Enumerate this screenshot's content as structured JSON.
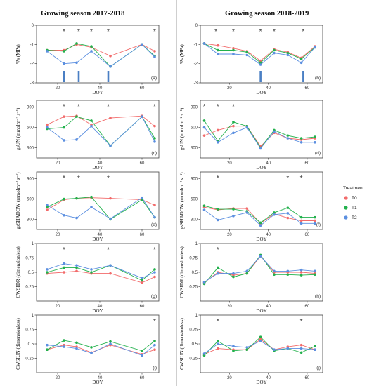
{
  "titles": {
    "left": "Growing season 2017-2018",
    "right": "Growing season 2018-2019"
  },
  "legend": {
    "title": "Treatment",
    "entries": [
      {
        "name": "T0",
        "color": "#f26b6b"
      },
      {
        "name": "T1",
        "color": "#22b14c"
      },
      {
        "name": "T2",
        "color": "#5b8fe0"
      }
    ]
  },
  "chart_data": [
    {
      "id": "a",
      "type": "line",
      "panel_label": "(a)",
      "ylabel": "Ψs (MPa)",
      "xlabel": "DOY",
      "xlim": [
        10,
        68
      ],
      "ylim": [
        -3,
        0
      ],
      "xticks": [
        20,
        40,
        60
      ],
      "yticks": [
        -3,
        -2,
        -1,
        0
      ],
      "x": [
        15,
        23,
        29,
        36,
        45,
        60,
        66
      ],
      "series": [
        {
          "name": "T0",
          "values": [
            -1.3,
            -1.3,
            -1.0,
            -1.15,
            -1.6,
            -1.0,
            -1.35
          ]
        },
        {
          "name": "T1",
          "values": [
            -1.3,
            -1.35,
            -0.95,
            -1.1,
            -2.15,
            -1.0,
            -1.6
          ]
        },
        {
          "name": "T2",
          "values": [
            -1.35,
            -2.0,
            -1.95,
            -1.35,
            -2.15,
            -1.0,
            -1.65
          ]
        }
      ],
      "stars": [
        23,
        30,
        36,
        44,
        66
      ],
      "arrows": [
        23,
        30,
        44
      ]
    },
    {
      "id": "b",
      "type": "line",
      "panel_label": "(b)",
      "ylabel": "Ψs (MPa)",
      "xlabel": "DOY",
      "xlim": [
        5,
        68
      ],
      "ylim": [
        -3,
        0
      ],
      "xticks": [
        20,
        40,
        60
      ],
      "yticks": [
        -3,
        -2,
        -1,
        0
      ],
      "x": [
        7,
        14,
        22,
        29,
        36,
        43,
        50,
        57,
        64
      ],
      "series": [
        {
          "name": "T0",
          "values": [
            -0.95,
            -1.05,
            -1.2,
            -1.35,
            -1.85,
            -1.25,
            -1.4,
            -1.7,
            -1.1
          ]
        },
        {
          "name": "T1",
          "values": [
            -0.95,
            -1.3,
            -1.3,
            -1.4,
            -1.95,
            -1.3,
            -1.45,
            -1.75,
            -1.15
          ]
        },
        {
          "name": "T2",
          "values": [
            -0.95,
            -1.5,
            -1.5,
            -1.55,
            -2.05,
            -1.45,
            -1.55,
            -1.95,
            -1.15
          ]
        }
      ],
      "stars": [
        13,
        22,
        36,
        43,
        58
      ],
      "arrows": [
        36,
        58
      ]
    },
    {
      "id": "c",
      "type": "line",
      "panel_label": "(c)",
      "ylabel": "gsUN (mmolm⁻² s⁻¹)",
      "xlabel": "DOY",
      "xlim": [
        10,
        68
      ],
      "ylim": [
        150,
        1000
      ],
      "xticks": [
        20,
        40,
        60
      ],
      "yticks": [
        300,
        600,
        900
      ],
      "x": [
        15,
        23,
        29,
        36,
        45,
        60,
        66
      ],
      "series": [
        {
          "name": "T0",
          "values": [
            640,
            760,
            770,
            640,
            740,
            770,
            620
          ]
        },
        {
          "name": "T1",
          "values": [
            580,
            600,
            760,
            700,
            330,
            760,
            440
          ]
        },
        {
          "name": "T2",
          "values": [
            600,
            410,
            420,
            620,
            330,
            760,
            390
          ]
        }
      ],
      "stars": [
        23,
        30,
        44,
        66
      ]
    },
    {
      "id": "d",
      "type": "line",
      "panel_label": "(d)",
      "ylabel": "gsUN (mmolm⁻² s⁻¹)",
      "xlabel": "DOY",
      "xlim": [
        5,
        68
      ],
      "ylim": [
        150,
        1000
      ],
      "xticks": [
        20,
        40,
        60
      ],
      "yticks": [
        300,
        600,
        900
      ],
      "x": [
        7,
        14,
        22,
        29,
        36,
        43,
        50,
        57,
        64
      ],
      "series": [
        {
          "name": "T0",
          "values": [
            480,
            560,
            620,
            620,
            320,
            520,
            440,
            420,
            440
          ]
        },
        {
          "name": "T1",
          "values": [
            700,
            400,
            680,
            620,
            300,
            560,
            480,
            440,
            460
          ]
        },
        {
          "name": "T2",
          "values": [
            600,
            380,
            520,
            600,
            290,
            540,
            440,
            380,
            380
          ]
        }
      ],
      "stars": [
        7,
        14,
        22
      ]
    },
    {
      "id": "e",
      "type": "line",
      "panel_label": "(e)",
      "ylabel": "gsSHADOW (mmolm⁻² s⁻¹)",
      "xlabel": "DOY",
      "xlim": [
        10,
        68
      ],
      "ylim": [
        150,
        1000
      ],
      "xticks": [
        20,
        40,
        60
      ],
      "yticks": [
        300,
        600,
        900
      ],
      "x": [
        15,
        23,
        29,
        36,
        45,
        60,
        66
      ],
      "series": [
        {
          "name": "T0",
          "values": [
            440,
            590,
            610,
            620,
            610,
            590,
            510
          ]
        },
        {
          "name": "T1",
          "values": [
            480,
            600,
            610,
            630,
            300,
            590,
            330
          ]
        },
        {
          "name": "T2",
          "values": [
            510,
            360,
            320,
            480,
            310,
            620,
            330
          ]
        }
      ],
      "stars": [
        23,
        30,
        44
      ]
    },
    {
      "id": "f",
      "type": "line",
      "panel_label": "(f)",
      "ylabel": "gsSHADOW (mmolm⁻² s⁻¹)",
      "xlabel": "DOY",
      "xlim": [
        5,
        68
      ],
      "ylim": [
        150,
        1000
      ],
      "xticks": [
        20,
        40,
        60
      ],
      "yticks": [
        300,
        600,
        900
      ],
      "x": [
        7,
        14,
        22,
        29,
        36,
        43,
        50,
        57,
        64
      ],
      "series": [
        {
          "name": "T0",
          "values": [
            480,
            440,
            460,
            460,
            240,
            380,
            320,
            280,
            280
          ]
        },
        {
          "name": "T1",
          "values": [
            500,
            450,
            450,
            420,
            250,
            400,
            470,
            330,
            330
          ]
        },
        {
          "name": "T2",
          "values": [
            440,
            290,
            350,
            400,
            210,
            370,
            390,
            240,
            240
          ]
        }
      ],
      "stars": [
        14,
        50,
        57
      ]
    },
    {
      "id": "g",
      "type": "line",
      "panel_label": "(g)",
      "ylabel": "CWSIDR (dimensionless)",
      "xlabel": "DOY",
      "xlim": [
        10,
        68
      ],
      "ylim": [
        0,
        1.0
      ],
      "xticks": [
        20,
        40,
        60
      ],
      "yticks": [
        0.25,
        0.5,
        0.75,
        1.0
      ],
      "x": [
        15,
        23,
        29,
        36,
        45,
        60,
        66
      ],
      "series": [
        {
          "name": "T0",
          "values": [
            0.48,
            0.5,
            0.52,
            0.48,
            0.48,
            0.32,
            0.42
          ]
        },
        {
          "name": "T1",
          "values": [
            0.5,
            0.58,
            0.58,
            0.5,
            0.62,
            0.36,
            0.55
          ]
        },
        {
          "name": "T2",
          "values": [
            0.55,
            0.65,
            0.62,
            0.55,
            0.62,
            0.4,
            0.5
          ]
        }
      ],
      "stars": [
        23,
        44,
        66
      ]
    },
    {
      "id": "h",
      "type": "line",
      "panel_label": "(h)",
      "ylabel": "CWSIDR (dimensionless)",
      "xlabel": "DOY",
      "xlim": [
        5,
        68
      ],
      "ylim": [
        0,
        1.0
      ],
      "xticks": [
        20,
        40,
        60
      ],
      "yticks": [
        0.25,
        0.5,
        0.75,
        1.0
      ],
      "x": [
        7,
        14,
        22,
        29,
        36,
        43,
        50,
        57,
        64
      ],
      "series": [
        {
          "name": "T0",
          "values": [
            0.32,
            0.5,
            0.45,
            0.48,
            0.78,
            0.5,
            0.5,
            0.5,
            0.48
          ]
        },
        {
          "name": "T1",
          "values": [
            0.3,
            0.58,
            0.42,
            0.48,
            0.8,
            0.46,
            0.46,
            0.45,
            0.46
          ]
        },
        {
          "name": "T2",
          "values": [
            0.33,
            0.48,
            0.48,
            0.52,
            0.78,
            0.52,
            0.52,
            0.54,
            0.52
          ]
        }
      ],
      "stars": [
        14
      ]
    },
    {
      "id": "i",
      "type": "line",
      "panel_label": "(i)",
      "ylabel": "CWSIUN (dimensionless)",
      "xlabel": "DOY",
      "xlim": [
        10,
        68
      ],
      "ylim": [
        0,
        1.0
      ],
      "xticks": [
        20,
        40,
        60
      ],
      "yticks": [
        0.25,
        0.5,
        0.75,
        1.0
      ],
      "x": [
        15,
        23,
        29,
        36,
        45,
        60,
        66
      ],
      "series": [
        {
          "name": "T0",
          "values": [
            0.4,
            0.48,
            0.45,
            0.35,
            0.48,
            0.32,
            0.4
          ]
        },
        {
          "name": "T1",
          "values": [
            0.4,
            0.56,
            0.52,
            0.44,
            0.54,
            0.38,
            0.55
          ]
        },
        {
          "name": "T2",
          "values": [
            0.48,
            0.45,
            0.42,
            0.34,
            0.5,
            0.3,
            0.48
          ]
        }
      ],
      "stars": [
        66
      ]
    },
    {
      "id": "j",
      "type": "line",
      "panel_label": "(j)",
      "ylabel": "CWSIUN (dimensionless)",
      "xlabel": "DOY",
      "xlim": [
        5,
        68
      ],
      "ylim": [
        0,
        1.0
      ],
      "xticks": [
        20,
        40,
        60
      ],
      "yticks": [
        0.25,
        0.5,
        0.75,
        1.0
      ],
      "x": [
        7,
        14,
        22,
        29,
        36,
        43,
        50,
        57,
        64
      ],
      "series": [
        {
          "name": "T0",
          "values": [
            0.32,
            0.42,
            0.4,
            0.4,
            0.58,
            0.4,
            0.45,
            0.48,
            0.4
          ]
        },
        {
          "name": "T1",
          "values": [
            0.3,
            0.55,
            0.38,
            0.4,
            0.62,
            0.38,
            0.42,
            0.35,
            0.46
          ]
        },
        {
          "name": "T2",
          "values": [
            0.33,
            0.5,
            0.46,
            0.44,
            0.55,
            0.4,
            0.42,
            0.42,
            0.4
          ]
        }
      ],
      "stars": [
        14,
        57
      ]
    }
  ]
}
